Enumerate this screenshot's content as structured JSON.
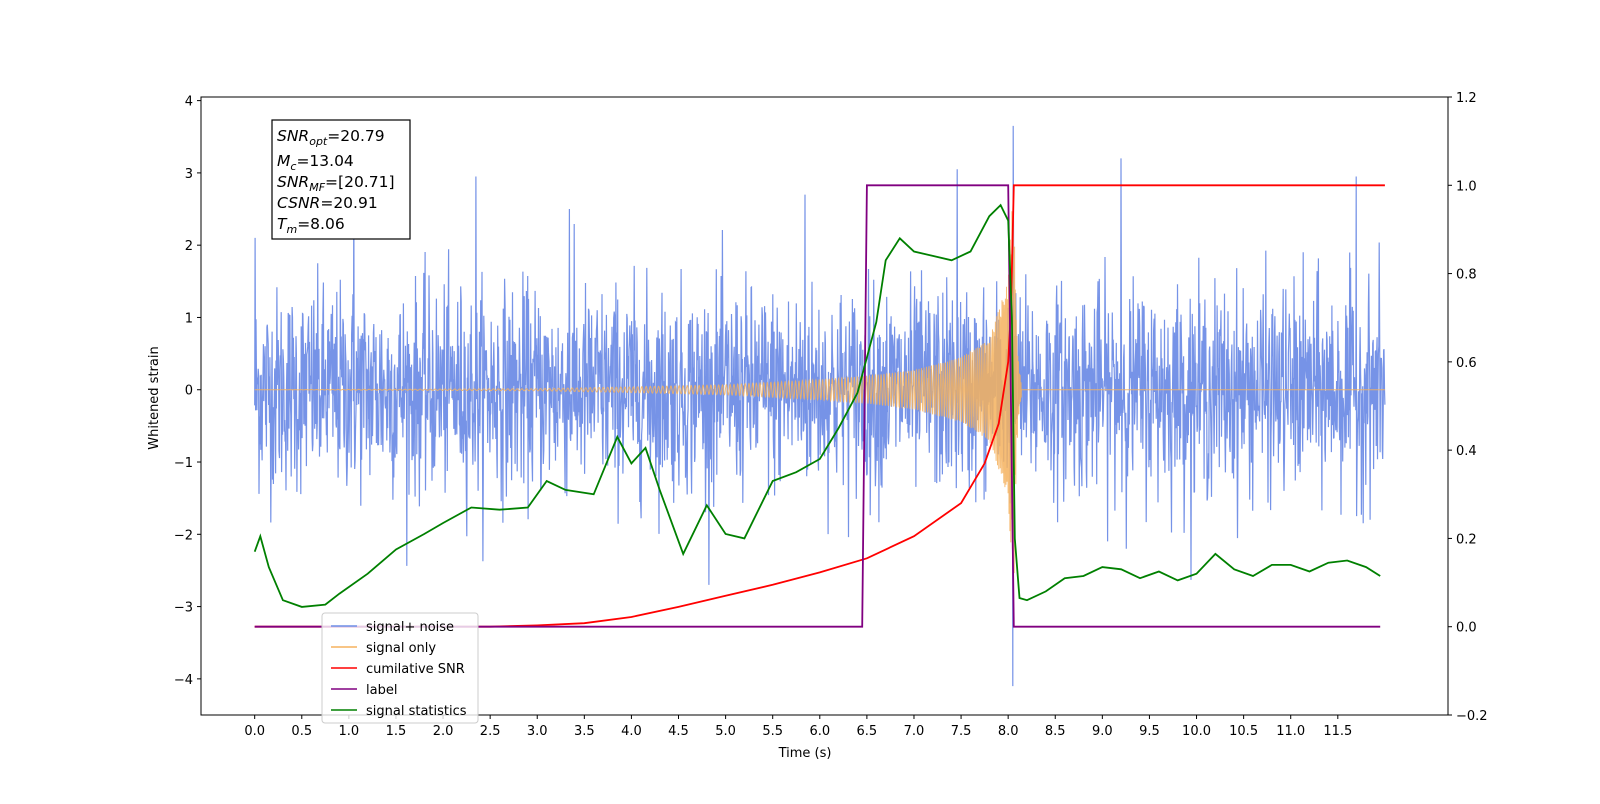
{
  "chart_data": {
    "type": "line",
    "xlabel": "Time (s)",
    "ylabel": "Whitened strain",
    "xlim": [
      -0.57,
      12.67
    ],
    "ylim": [
      -4.5,
      4.05
    ],
    "y2lim": [
      -0.2,
      1.2
    ],
    "x_ticks": [
      "0.0",
      "0.5",
      "1.0",
      "1.5",
      "2.0",
      "2.5",
      "3.0",
      "3.5",
      "4.0",
      "4.5",
      "5.0",
      "5.5",
      "6.0",
      "6.5",
      "7.0",
      "7.5",
      "8.0",
      "8.5",
      "9.0",
      "9.5",
      "10.0",
      "10.5",
      "11.0",
      "11.5"
    ],
    "y_ticks": [
      "4",
      "3",
      "2",
      "1",
      "0",
      "−1",
      "−2",
      "−3",
      "−4"
    ],
    "y2_ticks": [
      "1.2",
      "1.0",
      "0.8",
      "0.6",
      "0.4",
      "0.2",
      "0.0",
      "−0.2"
    ],
    "legend_position": "lower left",
    "annotation": {
      "lines": [
        {
          "sym": "SNR",
          "sub": "opt",
          "value": "=20.79"
        },
        {
          "sym": "M",
          "sub": "c",
          "value": "=13.04"
        },
        {
          "sym": "SNR",
          "sub": "MF",
          "value": "=[20.71]"
        },
        {
          "sym": "CSNR",
          "sub": "",
          "value": "=20.91"
        },
        {
          "sym": "T",
          "sub": "m",
          "value": "=8.06"
        }
      ]
    },
    "series": [
      {
        "name": "signal+ noise",
        "axis": "left",
        "color": "#6f8de6",
        "kind": "noise",
        "x_range": [
          0.0,
          12.0
        ],
        "envelope_typical": [
          -1.5,
          1.5
        ],
        "peaks": [
          [
            0.0,
            2.1
          ],
          [
            1.05,
            2.95
          ],
          [
            2.35,
            2.95
          ],
          [
            3.35,
            2.5
          ],
          [
            5.85,
            2.7
          ],
          [
            7.45,
            3.05
          ],
          [
            8.05,
            3.65
          ],
          [
            8.05,
            -4.1
          ],
          [
            9.2,
            3.2
          ],
          [
            11.7,
            2.95
          ]
        ]
      },
      {
        "name": "signal only",
        "axis": "left",
        "color": "#f5b25e",
        "kind": "chirp",
        "x_range": [
          0.0,
          12.0
        ],
        "merger_time": 8.06,
        "amplitude": [
          [
            0.0,
            0.0
          ],
          [
            3.0,
            0.015
          ],
          [
            4.0,
            0.04
          ],
          [
            5.0,
            0.07
          ],
          [
            6.0,
            0.14
          ],
          [
            6.5,
            0.19
          ],
          [
            7.0,
            0.27
          ],
          [
            7.5,
            0.45
          ],
          [
            7.8,
            0.7
          ],
          [
            8.0,
            1.5
          ],
          [
            8.06,
            3.0
          ]
        ]
      },
      {
        "name": "cumilative SNR",
        "axis": "right",
        "color": "#ff0000",
        "points": [
          [
            0.0,
            0.0
          ],
          [
            2.5,
            0.0
          ],
          [
            3.0,
            0.003
          ],
          [
            3.5,
            0.008
          ],
          [
            4.0,
            0.022
          ],
          [
            4.5,
            0.045
          ],
          [
            5.0,
            0.07
          ],
          [
            5.5,
            0.095
          ],
          [
            6.0,
            0.123
          ],
          [
            6.5,
            0.155
          ],
          [
            7.0,
            0.205
          ],
          [
            7.5,
            0.28
          ],
          [
            7.75,
            0.37
          ],
          [
            7.9,
            0.46
          ],
          [
            8.0,
            0.6
          ],
          [
            8.03,
            0.72
          ],
          [
            8.06,
            1.0
          ],
          [
            12.0,
            1.0
          ]
        ]
      },
      {
        "name": "label",
        "axis": "right",
        "color": "#800080",
        "points": [
          [
            0.0,
            0.0
          ],
          [
            6.45,
            0.0
          ],
          [
            6.5,
            1.0
          ],
          [
            8.0,
            1.0
          ],
          [
            8.06,
            0.0
          ],
          [
            11.95,
            0.0
          ]
        ]
      },
      {
        "name": "signal statistics",
        "axis": "right",
        "color": "#008000",
        "points": [
          [
            0.0,
            0.17
          ],
          [
            0.06,
            0.205
          ],
          [
            0.15,
            0.135
          ],
          [
            0.3,
            0.06
          ],
          [
            0.5,
            0.045
          ],
          [
            0.75,
            0.05
          ],
          [
            0.9,
            0.075
          ],
          [
            1.2,
            0.12
          ],
          [
            1.5,
            0.175
          ],
          [
            1.8,
            0.21
          ],
          [
            2.0,
            0.235
          ],
          [
            2.3,
            0.27
          ],
          [
            2.6,
            0.265
          ],
          [
            2.9,
            0.27
          ],
          [
            3.1,
            0.33
          ],
          [
            3.3,
            0.31
          ],
          [
            3.6,
            0.3
          ],
          [
            3.85,
            0.43
          ],
          [
            4.0,
            0.37
          ],
          [
            4.15,
            0.405
          ],
          [
            4.3,
            0.31
          ],
          [
            4.55,
            0.165
          ],
          [
            4.8,
            0.275
          ],
          [
            5.0,
            0.21
          ],
          [
            5.2,
            0.2
          ],
          [
            5.5,
            0.33
          ],
          [
            5.75,
            0.35
          ],
          [
            6.0,
            0.38
          ],
          [
            6.2,
            0.45
          ],
          [
            6.4,
            0.53
          ],
          [
            6.6,
            0.69
          ],
          [
            6.7,
            0.83
          ],
          [
            6.85,
            0.88
          ],
          [
            7.0,
            0.85
          ],
          [
            7.2,
            0.84
          ],
          [
            7.4,
            0.83
          ],
          [
            7.6,
            0.85
          ],
          [
            7.8,
            0.93
          ],
          [
            7.92,
            0.955
          ],
          [
            8.0,
            0.92
          ],
          [
            8.04,
            0.7
          ],
          [
            8.07,
            0.2
          ],
          [
            8.12,
            0.065
          ],
          [
            8.2,
            0.06
          ],
          [
            8.4,
            0.08
          ],
          [
            8.6,
            0.11
          ],
          [
            8.8,
            0.115
          ],
          [
            9.0,
            0.135
          ],
          [
            9.2,
            0.13
          ],
          [
            9.4,
            0.11
          ],
          [
            9.6,
            0.125
          ],
          [
            9.8,
            0.105
          ],
          [
            10.0,
            0.12
          ],
          [
            10.2,
            0.165
          ],
          [
            10.4,
            0.13
          ],
          [
            10.6,
            0.115
          ],
          [
            10.8,
            0.14
          ],
          [
            11.0,
            0.14
          ],
          [
            11.2,
            0.125
          ],
          [
            11.4,
            0.145
          ],
          [
            11.6,
            0.15
          ],
          [
            11.8,
            0.135
          ],
          [
            11.95,
            0.115
          ]
        ]
      }
    ]
  }
}
